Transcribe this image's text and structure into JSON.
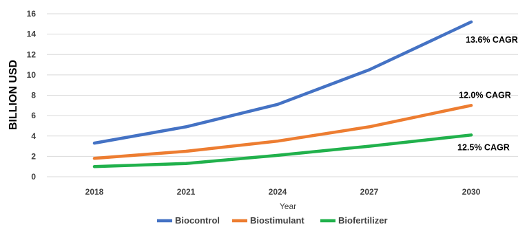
{
  "chart_data": {
    "type": "line",
    "x": [
      2018,
      2021,
      2024,
      2027,
      2030
    ],
    "xlabel": "Year",
    "ylabel": "BILLION USD",
    "ylim": [
      0,
      16
    ],
    "yticks": [
      0,
      2,
      4,
      6,
      8,
      10,
      12,
      14,
      16
    ],
    "grid": "horizontal",
    "legend": "bottom",
    "series": [
      {
        "name": "Biocontrol",
        "color": "#4472C4",
        "values": [
          3.3,
          4.9,
          7.1,
          10.5,
          15.2
        ]
      },
      {
        "name": "Biostimulant",
        "color": "#ED7D31",
        "values": [
          1.8,
          2.5,
          3.5,
          4.9,
          7.0
        ]
      },
      {
        "name": "Biofertilizer",
        "color": "#21B14C",
        "values": [
          1.0,
          1.3,
          2.1,
          3.0,
          4.1
        ]
      }
    ],
    "annotations": [
      {
        "text": "13.6% CAGR",
        "series": 0
      },
      {
        "text": "12.0% CAGR",
        "series": 1
      },
      {
        "text": "12.5% CAGR",
        "series": 2
      }
    ]
  }
}
